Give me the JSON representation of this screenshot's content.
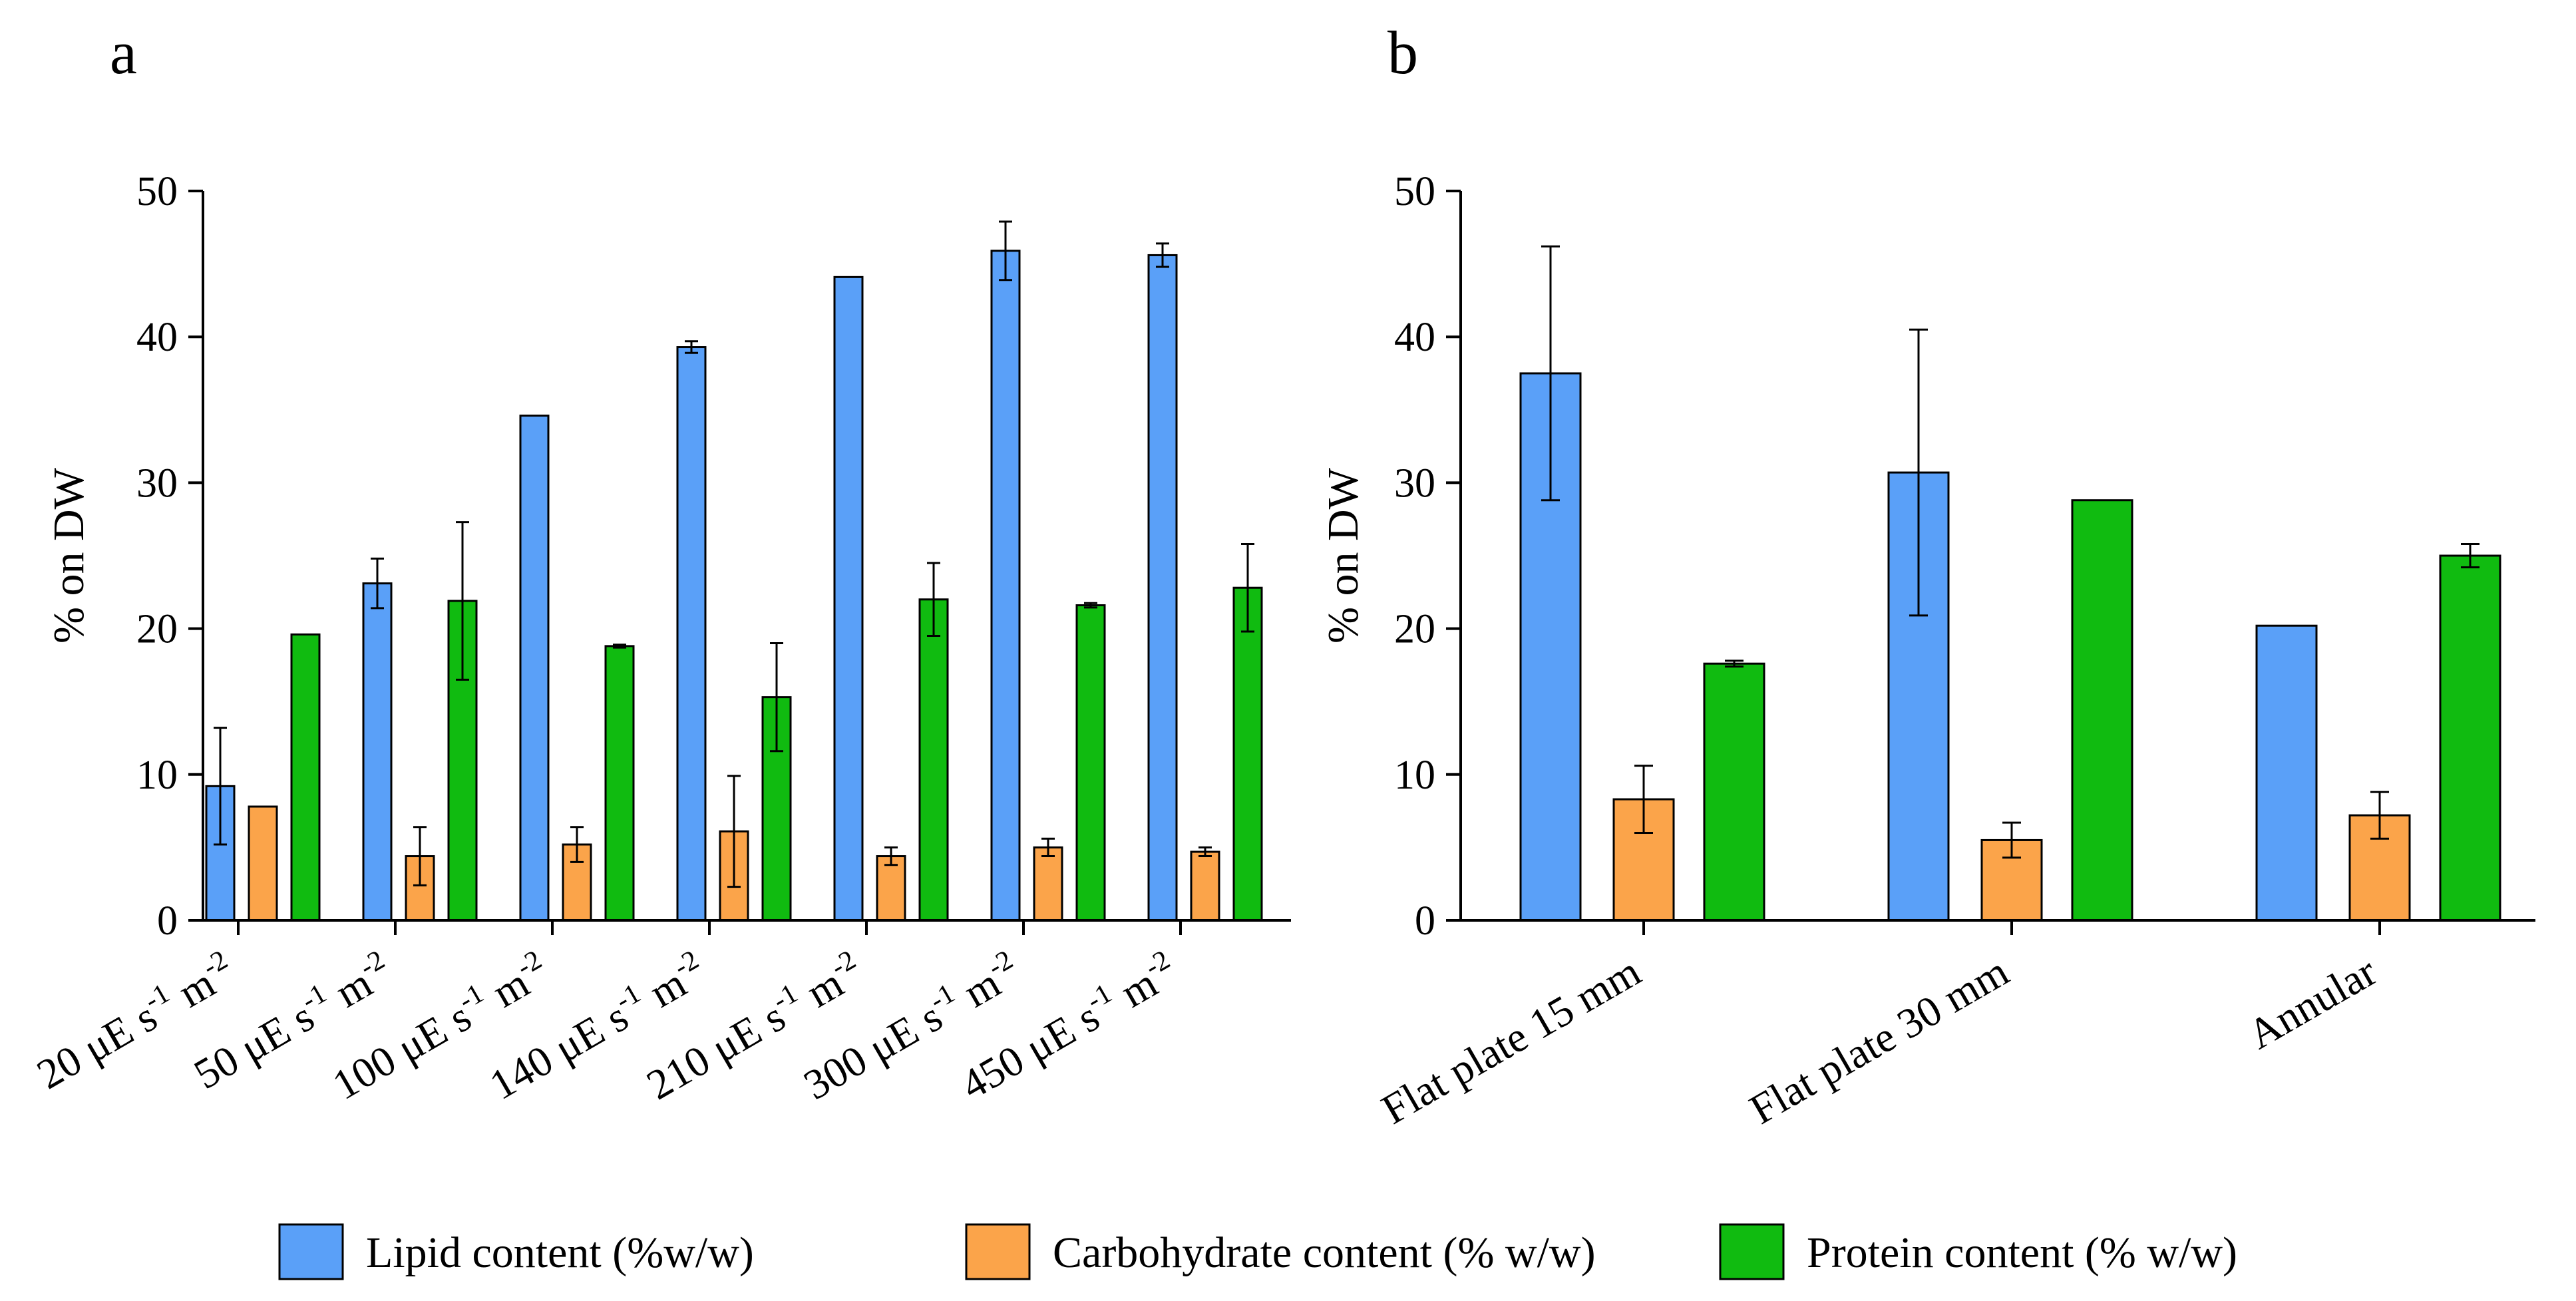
{
  "legend": [
    {
      "label": "Lipid content (%w/w)",
      "color": "#5aa0f8"
    },
    {
      "label": "Carbohydrate content (% w/w)",
      "color": "#fba44a"
    },
    {
      "label": "Protein content (% w/w)",
      "color": "#10bb10"
    }
  ],
  "chart_data": [
    {
      "panel": "a",
      "type": "bar",
      "ylabel": "% on DW",
      "ylim": [
        0,
        50
      ],
      "yticks": [
        "0",
        "10",
        "20",
        "30",
        "40",
        "50"
      ],
      "categories": [
        {
          "base": "20 μE s",
          "exp1": "-1",
          "mid": " m",
          "exp2": "-2"
        },
        {
          "base": "50 μE s",
          "exp1": "-1",
          "mid": " m",
          "exp2": "-2"
        },
        {
          "base": "100 μE s",
          "exp1": "-1",
          "mid": " m",
          "exp2": "-2"
        },
        {
          "base": "140 μE s",
          "exp1": "-1",
          "mid": " m",
          "exp2": "-2"
        },
        {
          "base": "210 μE s",
          "exp1": "-1",
          "mid": " m",
          "exp2": "-2"
        },
        {
          "base": "300 μE s",
          "exp1": "-1",
          "mid": " m",
          "exp2": "-2"
        },
        {
          "base": "450 μE s",
          "exp1": "-1",
          "mid": " m",
          "exp2": "-2"
        }
      ],
      "series": [
        {
          "name": "Lipid content (%w/w)",
          "values": [
            9.2,
            23.1,
            34.6,
            39.3,
            44.1,
            45.9,
            45.6
          ],
          "errors": [
            4.0,
            1.7,
            0,
            0.4,
            0,
            2.0,
            0.8
          ]
        },
        {
          "name": "Carbohydrate content (% w/w)",
          "values": [
            7.8,
            4.4,
            5.2,
            6.1,
            4.4,
            5.0,
            4.7
          ],
          "errors": [
            0,
            2.0,
            1.2,
            3.8,
            0.6,
            0.6,
            0.3
          ]
        },
        {
          "name": "Protein content (% w/w)",
          "values": [
            19.6,
            21.9,
            18.8,
            15.3,
            22.0,
            21.6,
            22.8
          ],
          "errors": [
            0,
            5.4,
            0.1,
            3.7,
            2.5,
            0.15,
            3.0
          ]
        }
      ]
    },
    {
      "panel": "b",
      "type": "bar",
      "ylabel": "% on DW",
      "ylim": [
        0,
        50
      ],
      "yticks": [
        "0",
        "10",
        "20",
        "30",
        "40",
        "50"
      ],
      "categories": [
        {
          "base": "Flat plate 15 mm"
        },
        {
          "base": "Flat plate 30 mm"
        },
        {
          "base": "Annular"
        }
      ],
      "series": [
        {
          "name": "Lipid content (%w/w)",
          "values": [
            37.5,
            30.7,
            20.2
          ],
          "errors": [
            8.7,
            9.8,
            0
          ]
        },
        {
          "name": "Carbohydrate content (% w/w)",
          "values": [
            8.3,
            5.5,
            7.2
          ],
          "errors": [
            2.3,
            1.2,
            1.6
          ]
        },
        {
          "name": "Protein content (% w/w)",
          "values": [
            17.6,
            28.8,
            25.0
          ],
          "errors": [
            0.2,
            0,
            0.8
          ]
        }
      ]
    }
  ]
}
